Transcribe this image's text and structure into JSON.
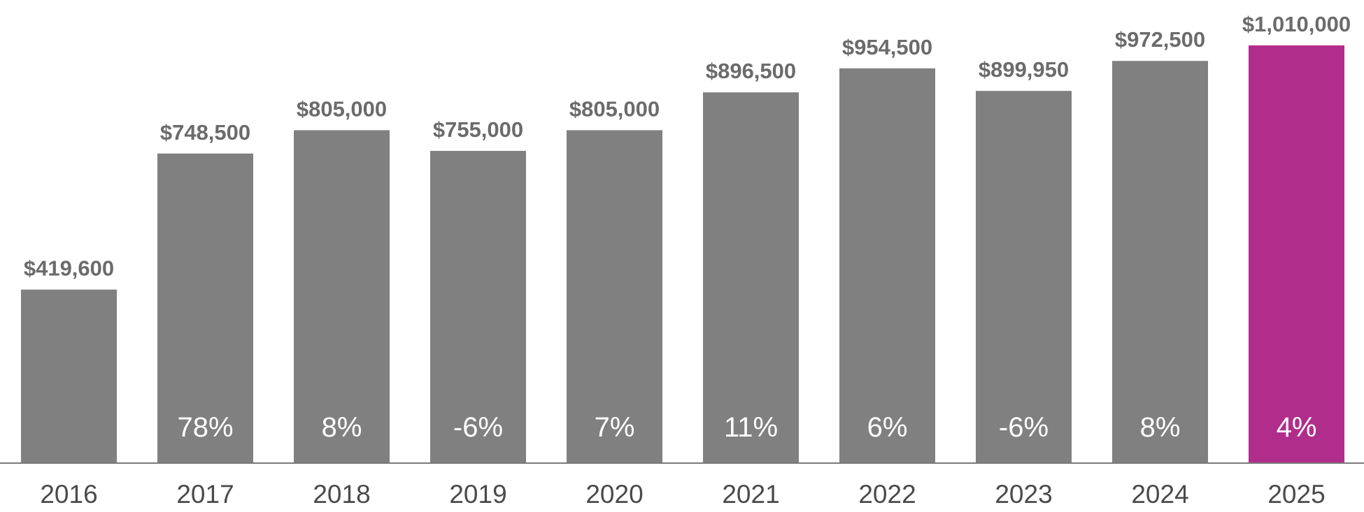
{
  "chart_data": {
    "type": "bar",
    "title": "",
    "xlabel": "",
    "ylabel": "",
    "ylim": [
      0,
      1010000
    ],
    "grid": false,
    "legend": "none",
    "categories": [
      "2016",
      "2017",
      "2018",
      "2019",
      "2020",
      "2021",
      "2022",
      "2023",
      "2024",
      "2025"
    ],
    "values": [
      419600,
      748500,
      805000,
      755000,
      805000,
      896500,
      954500,
      899950,
      972500,
      1010000
    ],
    "value_labels": [
      "$419,600",
      "$748,500",
      "$805,000",
      "$755,000",
      "$805,000",
      "$896,500",
      "$954,500",
      "$899,950",
      "$972,500",
      "$1,010,000"
    ],
    "change_labels": [
      "",
      "78%",
      "8%",
      "-6%",
      "7%",
      "11%",
      "6%",
      "-6%",
      "8%",
      "4%"
    ],
    "highlight_index": 9,
    "colors": {
      "bar": "#808080",
      "highlight": "#b12d8c",
      "axis": "#7a7a7a"
    }
  }
}
